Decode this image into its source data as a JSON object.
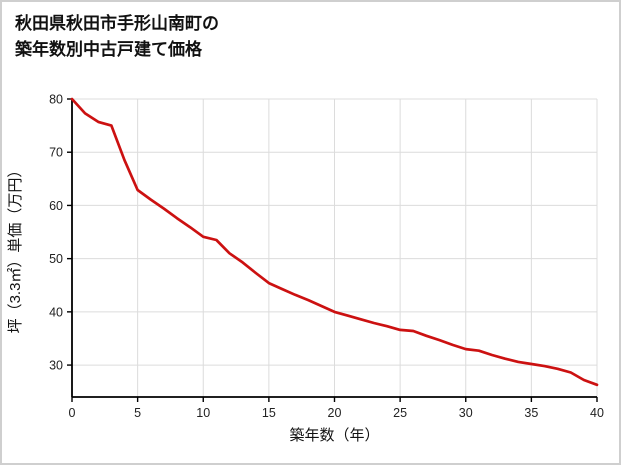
{
  "chart_data": {
    "type": "line",
    "title": "秋田県秋田市手形山南町の築年数別中古戸建て価格",
    "title_lines": [
      "秋田県秋田市手形山南町の",
      "築年数別中古戸建て価格"
    ],
    "xlabel": "築年数（年）",
    "ylabel": "坪（3.3㎡）単価（万円）",
    "x": [
      0,
      1,
      2,
      3,
      4,
      5,
      6,
      7,
      8,
      9,
      10,
      11,
      12,
      13,
      14,
      15,
      16,
      17,
      18,
      19,
      20,
      21,
      22,
      23,
      24,
      25,
      26,
      27,
      28,
      29,
      30,
      31,
      32,
      33,
      34,
      35,
      36,
      37,
      38,
      39,
      40
    ],
    "values": [
      80,
      77.3,
      75.7,
      75.0,
      68.5,
      62.9,
      61.1,
      59.4,
      57.6,
      55.9,
      54.1,
      53.5,
      51.0,
      49.3,
      47.3,
      45.4,
      44.3,
      43.2,
      42.2,
      41.1,
      40.0,
      39.3,
      38.6,
      37.9,
      37.3,
      36.6,
      36.4,
      35.5,
      34.7,
      33.8,
      33.0,
      32.7,
      31.9,
      31.2,
      30.6,
      30.2,
      29.8,
      29.3,
      28.6,
      27.2,
      26.3
    ],
    "xticks": [
      0,
      5,
      10,
      15,
      20,
      25,
      30,
      35,
      40
    ],
    "yticks": [
      30,
      40,
      50,
      60,
      70,
      80
    ],
    "xlim": [
      0,
      40
    ],
    "ylim": [
      24,
      80
    ],
    "grid": true,
    "legend": "none",
    "line_color": "#cc1111",
    "grid_color": "#dcdcdc",
    "axis_color": "#000000",
    "tick_label_color": "#222222"
  }
}
